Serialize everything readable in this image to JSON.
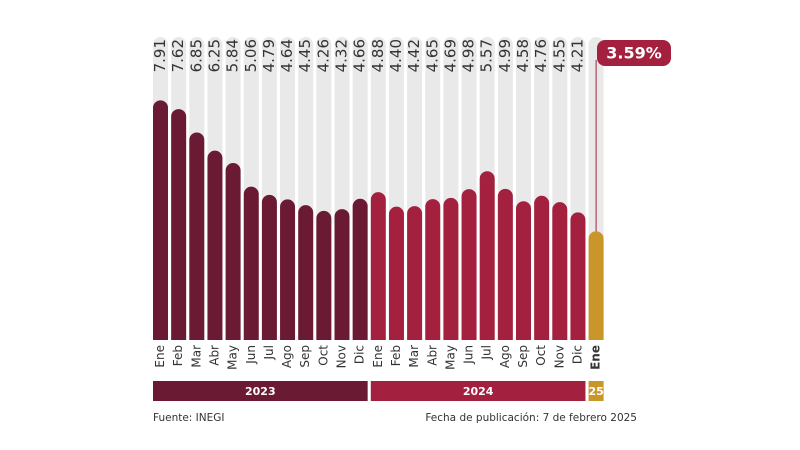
{
  "chart_data": {
    "type": "bar",
    "series": [
      {
        "name": "2023",
        "color": "#6b1a33",
        "categories": [
          "Ene",
          "Feb",
          "Mar",
          "Abr",
          "May",
          "Jun",
          "Jul",
          "Ago",
          "Sep",
          "Oct",
          "Nov",
          "Dic"
        ],
        "values": [
          7.91,
          7.62,
          6.85,
          6.25,
          5.84,
          5.06,
          4.79,
          4.64,
          4.45,
          4.26,
          4.32,
          4.66
        ],
        "value_labels": [
          "7.91",
          "7.62",
          "6.85",
          "6.25",
          "5.84",
          "5.06",
          "4.79",
          "4.64",
          "4.45",
          "4.26",
          "4.32",
          "4.66"
        ]
      },
      {
        "name": "2024",
        "color": "#a3213f",
        "categories": [
          "Ene",
          "Feb",
          "Mar",
          "Abr",
          "May",
          "Jun",
          "Jul",
          "Ago",
          "Sep",
          "Oct",
          "Nov",
          "Dic"
        ],
        "values": [
          4.88,
          4.4,
          4.42,
          4.65,
          4.69,
          4.98,
          5.57,
          4.99,
          4.58,
          4.76,
          4.55,
          4.21
        ],
        "value_labels": [
          "4.88",
          "4.40",
          "4.42",
          "4.65",
          "4.69",
          "4.98",
          "5.57",
          "4.99",
          "4.58",
          "4.76",
          "4.55",
          "4.21"
        ]
      },
      {
        "name": "25",
        "color": "#c9962a",
        "categories": [
          "Ene"
        ],
        "values": [
          3.59
        ],
        "value_labels": [
          "3.59%"
        ]
      }
    ],
    "ylim": [
      0,
      10
    ],
    "source": "Fuente: INEGI",
    "published": "Fecha de publicación: 7 de febrero 2025"
  }
}
